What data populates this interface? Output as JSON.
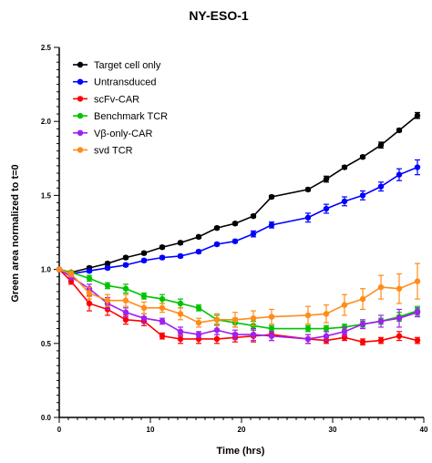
{
  "chart_data": {
    "type": "line",
    "title": "NY-ESO-1",
    "xlabel": "Time (hrs)",
    "ylabel": "Green area normalized to t=0",
    "xlim": [
      0,
      40
    ],
    "ylim": [
      0,
      2.5
    ],
    "x_ticks": [
      0,
      10,
      20,
      30,
      40
    ],
    "x_tick_labels": [
      "0",
      "10",
      "20",
      "30",
      "40"
    ],
    "y_ticks": [
      0,
      0.5,
      1.0,
      1.5,
      2.0,
      2.5
    ],
    "y_tick_labels": [
      "0.0",
      "0.5",
      "1.0",
      "1.5",
      "2.0",
      "2.5"
    ],
    "grid": false,
    "legend_position": "top-left",
    "series": [
      {
        "name": "Target cell only",
        "color": "#000000",
        "x": [
          0,
          1.3,
          3.3,
          5.3,
          7.3,
          9.3,
          11.3,
          13.3,
          15.3,
          17.3,
          19.3,
          21.3,
          23.3,
          27.3,
          29.3,
          31.3,
          33.3,
          35.3,
          37.3,
          39.3
        ],
        "y": [
          1.0,
          0.98,
          1.01,
          1.04,
          1.08,
          1.11,
          1.15,
          1.18,
          1.22,
          1.28,
          1.31,
          1.36,
          1.49,
          1.54,
          1.61,
          1.69,
          1.76,
          1.84,
          1.94,
          2.04
        ],
        "err": [
          0,
          0.01,
          0.01,
          0.01,
          0.01,
          0.01,
          0.01,
          0.01,
          0.01,
          0.01,
          0.01,
          0.01,
          0.01,
          0.01,
          0.02,
          0.01,
          0.01,
          0.02,
          0.01,
          0.02
        ]
      },
      {
        "name": "Untransduced",
        "color": "#0000ff",
        "x": [
          0,
          1.3,
          3.3,
          5.3,
          7.3,
          9.3,
          11.3,
          13.3,
          15.3,
          17.3,
          19.3,
          21.3,
          23.3,
          27.3,
          29.3,
          31.3,
          33.3,
          35.3,
          37.3,
          39.3
        ],
        "y": [
          1.0,
          0.97,
          0.99,
          1.01,
          1.03,
          1.06,
          1.08,
          1.09,
          1.12,
          1.17,
          1.19,
          1.24,
          1.3,
          1.35,
          1.41,
          1.46,
          1.5,
          1.56,
          1.64,
          1.69
        ],
        "err": [
          0,
          0.01,
          0.01,
          0.01,
          0.01,
          0.01,
          0.01,
          0.01,
          0.01,
          0.01,
          0.01,
          0.02,
          0.02,
          0.03,
          0.03,
          0.03,
          0.03,
          0.03,
          0.04,
          0.05
        ]
      },
      {
        "name": "scFv-CAR",
        "color": "#ff0000",
        "x": [
          0,
          1.3,
          3.3,
          5.3,
          7.3,
          9.3,
          11.3,
          13.3,
          15.3,
          17.3,
          19.3,
          21.3,
          23.3,
          27.3,
          29.3,
          31.3,
          33.3,
          35.3,
          37.3,
          39.3
        ],
        "y": [
          1.0,
          0.92,
          0.77,
          0.73,
          0.66,
          0.65,
          0.55,
          0.53,
          0.53,
          0.53,
          0.54,
          0.55,
          0.56,
          0.53,
          0.52,
          0.54,
          0.51,
          0.52,
          0.55,
          0.52
        ],
        "err": [
          0,
          0.02,
          0.05,
          0.04,
          0.03,
          0.03,
          0.02,
          0.03,
          0.03,
          0.03,
          0.03,
          0.04,
          0.04,
          0.03,
          0.02,
          0.02,
          0.02,
          0.02,
          0.03,
          0.02
        ]
      },
      {
        "name": "Benchmark TCR",
        "color": "#00c400",
        "x": [
          0,
          1.3,
          3.3,
          5.3,
          7.3,
          9.3,
          11.3,
          13.3,
          15.3,
          17.3,
          19.3,
          21.3,
          23.3,
          27.3,
          29.3,
          31.3,
          33.3,
          35.3,
          37.3,
          39.3
        ],
        "y": [
          1.0,
          0.98,
          0.94,
          0.89,
          0.87,
          0.82,
          0.8,
          0.77,
          0.74,
          0.66,
          0.64,
          0.62,
          0.6,
          0.6,
          0.6,
          0.61,
          0.63,
          0.65,
          0.68,
          0.72
        ],
        "err": [
          0,
          0.01,
          0.02,
          0.02,
          0.03,
          0.02,
          0.03,
          0.03,
          0.02,
          0.03,
          0.03,
          0.03,
          0.02,
          0.02,
          0.02,
          0.02,
          0.02,
          0.02,
          0.03,
          0.03
        ]
      },
      {
        "name": "Vβ-only-CAR",
        "color": "#a020f0",
        "x": [
          0,
          1.3,
          3.3,
          5.3,
          7.3,
          9.3,
          11.3,
          13.3,
          15.3,
          17.3,
          19.3,
          21.3,
          23.3,
          27.3,
          29.3,
          31.3,
          33.3,
          35.3,
          37.3,
          39.3
        ],
        "y": [
          1.0,
          0.95,
          0.87,
          0.77,
          0.71,
          0.67,
          0.65,
          0.58,
          0.56,
          0.59,
          0.56,
          0.56,
          0.55,
          0.53,
          0.55,
          0.58,
          0.63,
          0.65,
          0.67,
          0.71
        ],
        "err": [
          0,
          0.02,
          0.03,
          0.04,
          0.03,
          0.03,
          0.02,
          0.03,
          0.02,
          0.03,
          0.03,
          0.04,
          0.03,
          0.03,
          0.03,
          0.03,
          0.03,
          0.04,
          0.06,
          0.03
        ]
      },
      {
        "name": "svd TCR",
        "color": "#ff8c1a",
        "x": [
          0,
          1.3,
          3.3,
          5.3,
          7.3,
          9.3,
          11.3,
          13.3,
          15.3,
          17.3,
          19.3,
          21.3,
          23.3,
          27.3,
          29.3,
          31.3,
          33.3,
          35.3,
          37.3,
          39.3
        ],
        "y": [
          1.0,
          0.97,
          0.84,
          0.79,
          0.79,
          0.74,
          0.74,
          0.7,
          0.64,
          0.66,
          0.66,
          0.67,
          0.68,
          0.69,
          0.7,
          0.76,
          0.8,
          0.88,
          0.87,
          0.92
        ],
        "err": [
          0,
          0.02,
          0.04,
          0.04,
          0.04,
          0.04,
          0.03,
          0.04,
          0.03,
          0.04,
          0.05,
          0.05,
          0.05,
          0.06,
          0.06,
          0.07,
          0.07,
          0.08,
          0.1,
          0.12
        ]
      }
    ]
  }
}
